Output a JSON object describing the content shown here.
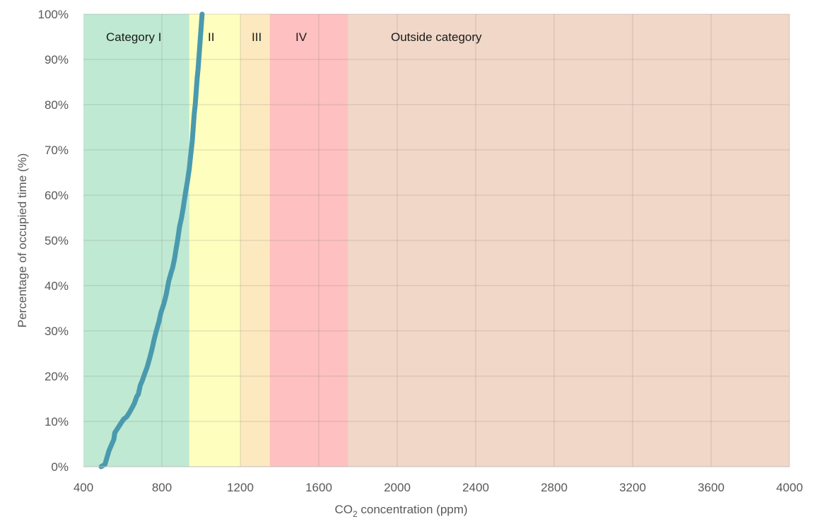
{
  "chart_data": {
    "type": "line",
    "xlabel": {
      "prefix": "CO",
      "sub": "2",
      "suffix": " concentration (ppm)"
    },
    "ylabel": "Percentage of occupied time (%)",
    "xlim": [
      400,
      4000
    ],
    "ylim": [
      0,
      100
    ],
    "x_ticks": [
      400,
      800,
      1200,
      1600,
      2000,
      2400,
      2800,
      3200,
      3600,
      4000
    ],
    "y_ticks": [
      0,
      10,
      20,
      30,
      40,
      50,
      60,
      70,
      80,
      90,
      100
    ],
    "y_tick_labels": [
      "0%",
      "10%",
      "20%",
      "30%",
      "40%",
      "50%",
      "60%",
      "70%",
      "80%",
      "90%",
      "100%"
    ],
    "grid": true,
    "line_color": "#4a9aae",
    "bands": [
      {
        "label": "Category I",
        "from": 400,
        "to": 940,
        "color": "#bfe9d2"
      },
      {
        "label": "II",
        "from": 940,
        "to": 1200,
        "color": "#fefebf"
      },
      {
        "label": "III",
        "from": 1200,
        "to": 1350,
        "color": "#fde9bf"
      },
      {
        "label": "IV",
        "from": 1350,
        "to": 1750,
        "color": "#fec0c0"
      },
      {
        "label": "Outside category",
        "from": 1750,
        "to": 4000,
        "color": "#f0d7c8"
      }
    ],
    "series": [
      {
        "x": [
          490,
          510,
          520,
          530,
          545,
          555,
          560,
          575,
          590,
          605,
          620,
          635,
          648,
          660,
          672,
          680,
          690,
          700,
          712,
          725,
          738,
          750,
          760,
          772,
          785,
          795,
          810,
          822,
          835,
          848,
          855,
          865,
          872,
          880,
          890,
          900,
          908,
          915,
          922,
          930,
          940,
          945,
          950,
          955,
          960,
          965,
          970,
          975,
          980,
          985,
          990,
          995,
          1000,
          1005
        ],
        "y": [
          0,
          0.5,
          2,
          3.5,
          5,
          6,
          7.5,
          8.5,
          9.5,
          10.5,
          11,
          12,
          13,
          14,
          15.5,
          16,
          18,
          19,
          20.5,
          22,
          24,
          26,
          28,
          30,
          32,
          34,
          36,
          38,
          41,
          43,
          44,
          46,
          48,
          50,
          53,
          55,
          57,
          59,
          61,
          63,
          66,
          68,
          70,
          72,
          75,
          78,
          80,
          83,
          86,
          88,
          91,
          94,
          97,
          100
        ]
      }
    ]
  }
}
